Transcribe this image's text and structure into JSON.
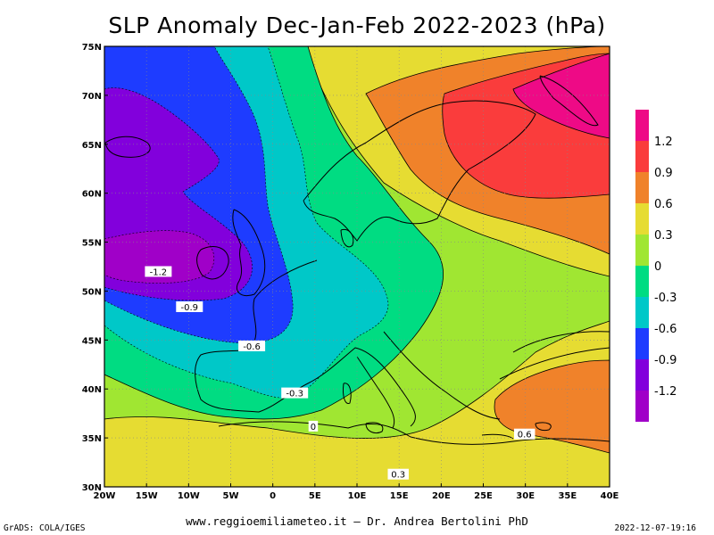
{
  "header": {
    "title": "SLP Anomaly Dec-Jan-Feb 2022-2023 (hPa)"
  },
  "footer": {
    "website": "www.reggioemiliameteo.it – Dr. Andrea Bertolini PhD",
    "credit": "GrADS: COLA/IGES",
    "timestamp": "2022-12-07-19:16"
  },
  "map": {
    "lon_ticks": [
      "20W",
      "15W",
      "10W",
      "5W",
      "0",
      "5E",
      "10E",
      "15E",
      "20E",
      "25E",
      "30E",
      "35E",
      "40E"
    ],
    "lat_ticks": [
      "75N",
      "70N",
      "65N",
      "60N",
      "55N",
      "50N",
      "45N",
      "40N",
      "35N",
      "30N"
    ],
    "contour_labels": [
      {
        "text": "-1.2",
        "lon": -13.6,
        "lat": 52.0
      },
      {
        "text": "-0.9",
        "lon": -9.9,
        "lat": 48.4
      },
      {
        "text": "-0.6",
        "lon": -2.5,
        "lat": 44.4
      },
      {
        "text": "-0.3",
        "lon": 2.6,
        "lat": 39.6
      },
      {
        "text": "0",
        "lon": 4.8,
        "lat": 36.2
      },
      {
        "text": "0.6",
        "lon": 29.9,
        "lat": 35.4
      },
      {
        "text": "0.3",
        "lon": 14.9,
        "lat": 31.3
      }
    ]
  },
  "legend": {
    "entries": [
      {
        "label": "1.2",
        "color": "#ee0a86"
      },
      {
        "label": "0.9",
        "color": "#fa3c3c"
      },
      {
        "label": "0.6",
        "color": "#f0822a"
      },
      {
        "label": "0.3",
        "color": "#e6dc32"
      },
      {
        "label": "0",
        "color": "#a0e632"
      },
      {
        "label": "-0.3",
        "color": "#00dc82"
      },
      {
        "label": "-0.6",
        "color": "#00c8c8"
      },
      {
        "label": "-0.9",
        "color": "#1e3cff"
      },
      {
        "label": "-1.2",
        "color": "#8200dc"
      }
    ],
    "bottom_color": "#a000c8"
  }
}
